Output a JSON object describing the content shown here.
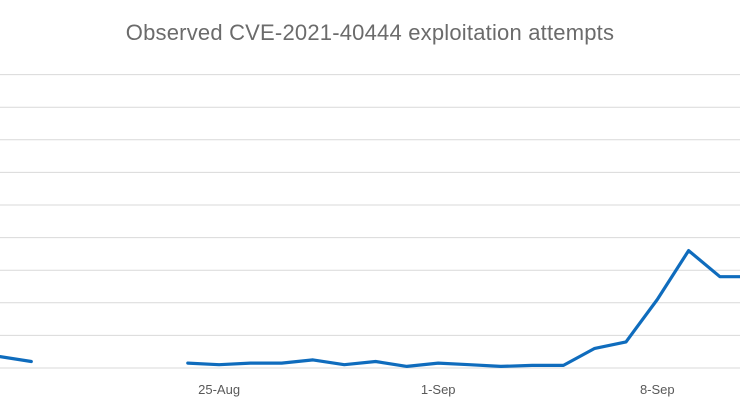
{
  "chart_data": {
    "type": "line",
    "title": "Observed CVE-2021-40444 exploitation attempts",
    "xlabel": "",
    "ylabel": "",
    "x_tick_labels": [
      "25-Aug",
      "1-Sep",
      "8-Sep"
    ],
    "x_tick_days": [
      25,
      32,
      39
    ],
    "grid": true,
    "legend": "none",
    "y_gridline_count": 9,
    "y_range_estimate": [
      0,
      9
    ],
    "series": [
      {
        "color": "#0f6cbd",
        "segments": [
          {
            "x": [
              18,
              19
            ],
            "y": [
              0.35,
              0.2
            ]
          },
          {
            "x": [
              24,
              25,
              26,
              27,
              28,
              29,
              30,
              31,
              32,
              33,
              34,
              35,
              36,
              37,
              38,
              39,
              40,
              41,
              42,
              43
            ],
            "y": [
              0.15,
              0.1,
              0.15,
              0.15,
              0.25,
              0.1,
              0.2,
              0.05,
              0.15,
              0.1,
              0.05,
              0.08,
              0.08,
              0.6,
              0.8,
              2.1,
              3.6,
              2.8,
              2.8,
              2.8
            ]
          }
        ]
      }
    ]
  }
}
